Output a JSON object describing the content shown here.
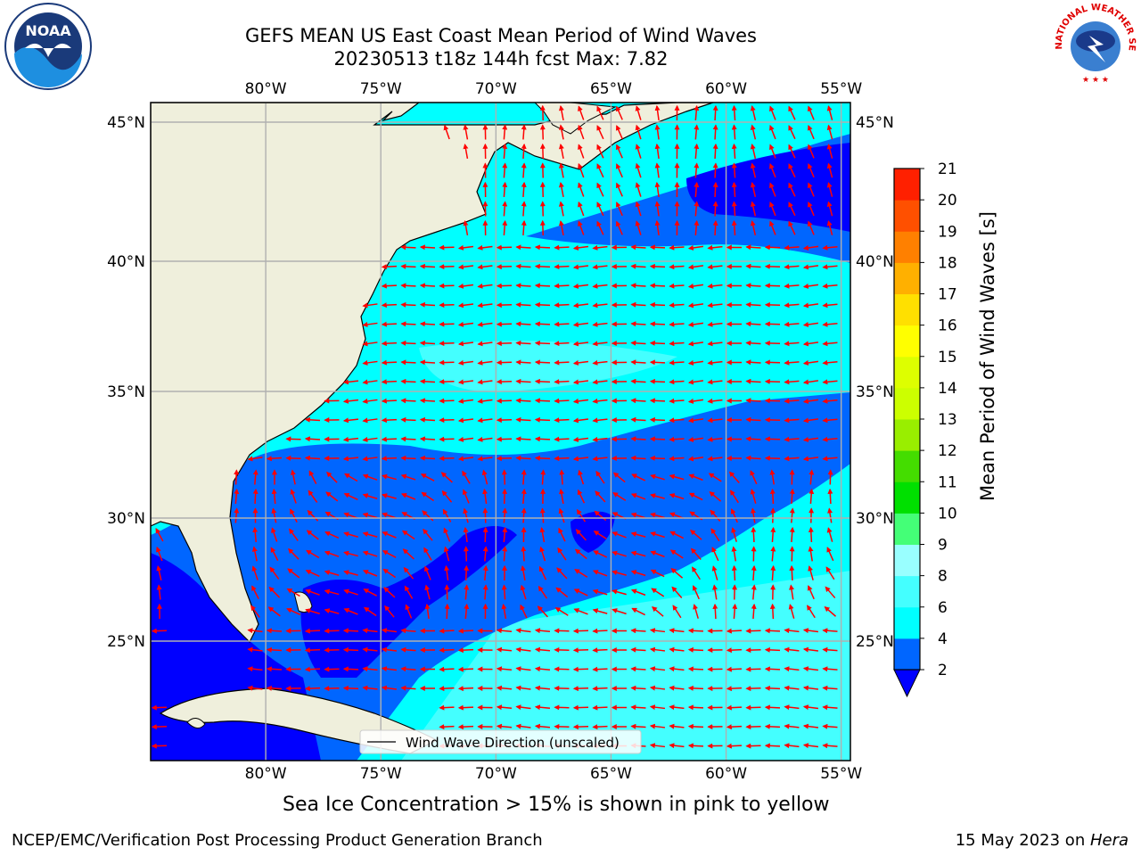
{
  "title": {
    "line1": "GEFS MEAN US East Coast Mean Period of Wind Waves",
    "line2": "20230513 t18z 144h fcst   Max: 7.82"
  },
  "map": {
    "lon_ticks": [
      "80°W",
      "75°W",
      "70°W",
      "65°W",
      "60°W",
      "55°W"
    ],
    "lat_ticks": [
      "45°N",
      "40°N",
      "35°N",
      "30°N",
      "25°N"
    ],
    "lon_range": [
      -85,
      -54.6
    ],
    "lat_range": [
      20.5,
      45.8
    ],
    "legend_label": "Wind Wave Direction (unscaled)",
    "arrow_color": "#ff0000",
    "land_color": "#efefdc"
  },
  "colorbar": {
    "label": "Mean Period of Wind Waves [s]",
    "ticks": [
      "2",
      "4",
      "6",
      "8",
      "9",
      "10",
      "11",
      "12",
      "13",
      "14",
      "15",
      "16",
      "17",
      "18",
      "19",
      "20",
      "21"
    ],
    "colors": [
      "#0066ff",
      "#00ffff",
      "#44ffff",
      "#99ffff",
      "#44ff77",
      "#00e000",
      "#44dd00",
      "#99ee00",
      "#ccff00",
      "#ddff00",
      "#ffff00",
      "#ffe000",
      "#ffb000",
      "#ff8000",
      "#ff5000",
      "#ff2000"
    ],
    "under_color": "#0000ff"
  },
  "notes": {
    "ice": "Sea Ice Concentration > 15% is shown in pink to yellow",
    "footer_left": "NCEP/EMC/Verification Post Processing Product Generation Branch",
    "footer_date": "15 May 2023 on ",
    "footer_host": "Hera"
  },
  "logos": {
    "noaa_text": "NOAA",
    "nws_text": "NATIONAL WEATHER SERVICE"
  }
}
